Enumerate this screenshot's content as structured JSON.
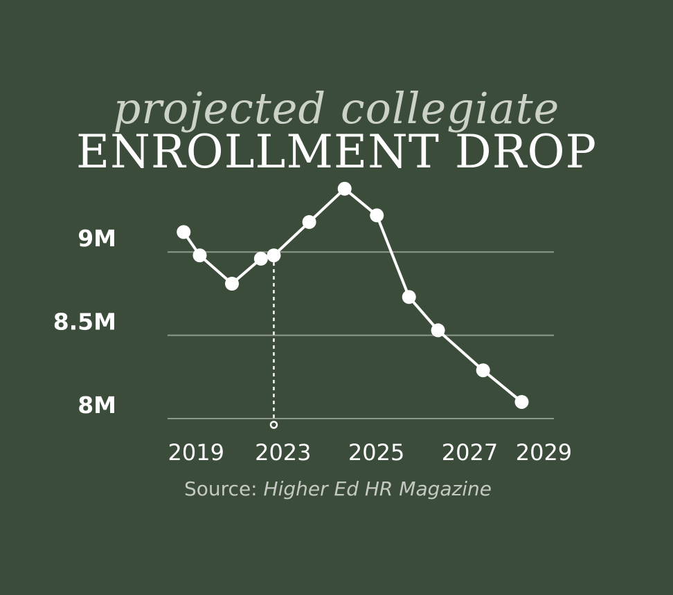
{
  "chart_data": {
    "type": "line",
    "title_line1": "projected collegiate",
    "title_line2": "ENROLLMENT DROP",
    "source_prefix": "Source: ",
    "source_name": "Higher Ed HR Magazine",
    "y_ticks": [
      {
        "label": "9M",
        "value": 9.0
      },
      {
        "label": "8.5M",
        "value": 8.5
      },
      {
        "label": "8M",
        "value": 8.0
      }
    ],
    "x_ticks": [
      {
        "label": "2019",
        "value": 2018.5
      },
      {
        "label": "2023",
        "value": 2021.2
      },
      {
        "label": "2025",
        "value": 2024.1
      },
      {
        "label": "2027",
        "value": 2027.0
      },
      {
        "label": "2029",
        "value": 2029.3
      }
    ],
    "ylim": [
      8.0,
      9.3
    ],
    "xlim": [
      2018,
      2030
    ],
    "grid": true,
    "highlight_x": 2021.3,
    "colors": {
      "background": "#3b4c3a",
      "line": "#ffffff",
      "grid": "#8e9a8b"
    },
    "series": [
      {
        "x": [
          2018.5,
          2019.0,
          2020.0,
          2020.9,
          2021.3,
          2022.4,
          2023.5,
          2024.5,
          2025.5,
          2026.4,
          2027.8,
          2029.0
        ],
        "values": [
          9.07,
          8.93,
          8.76,
          8.91,
          8.93,
          9.13,
          9.33,
          9.17,
          8.68,
          8.48,
          8.24,
          8.05
        ]
      }
    ]
  }
}
